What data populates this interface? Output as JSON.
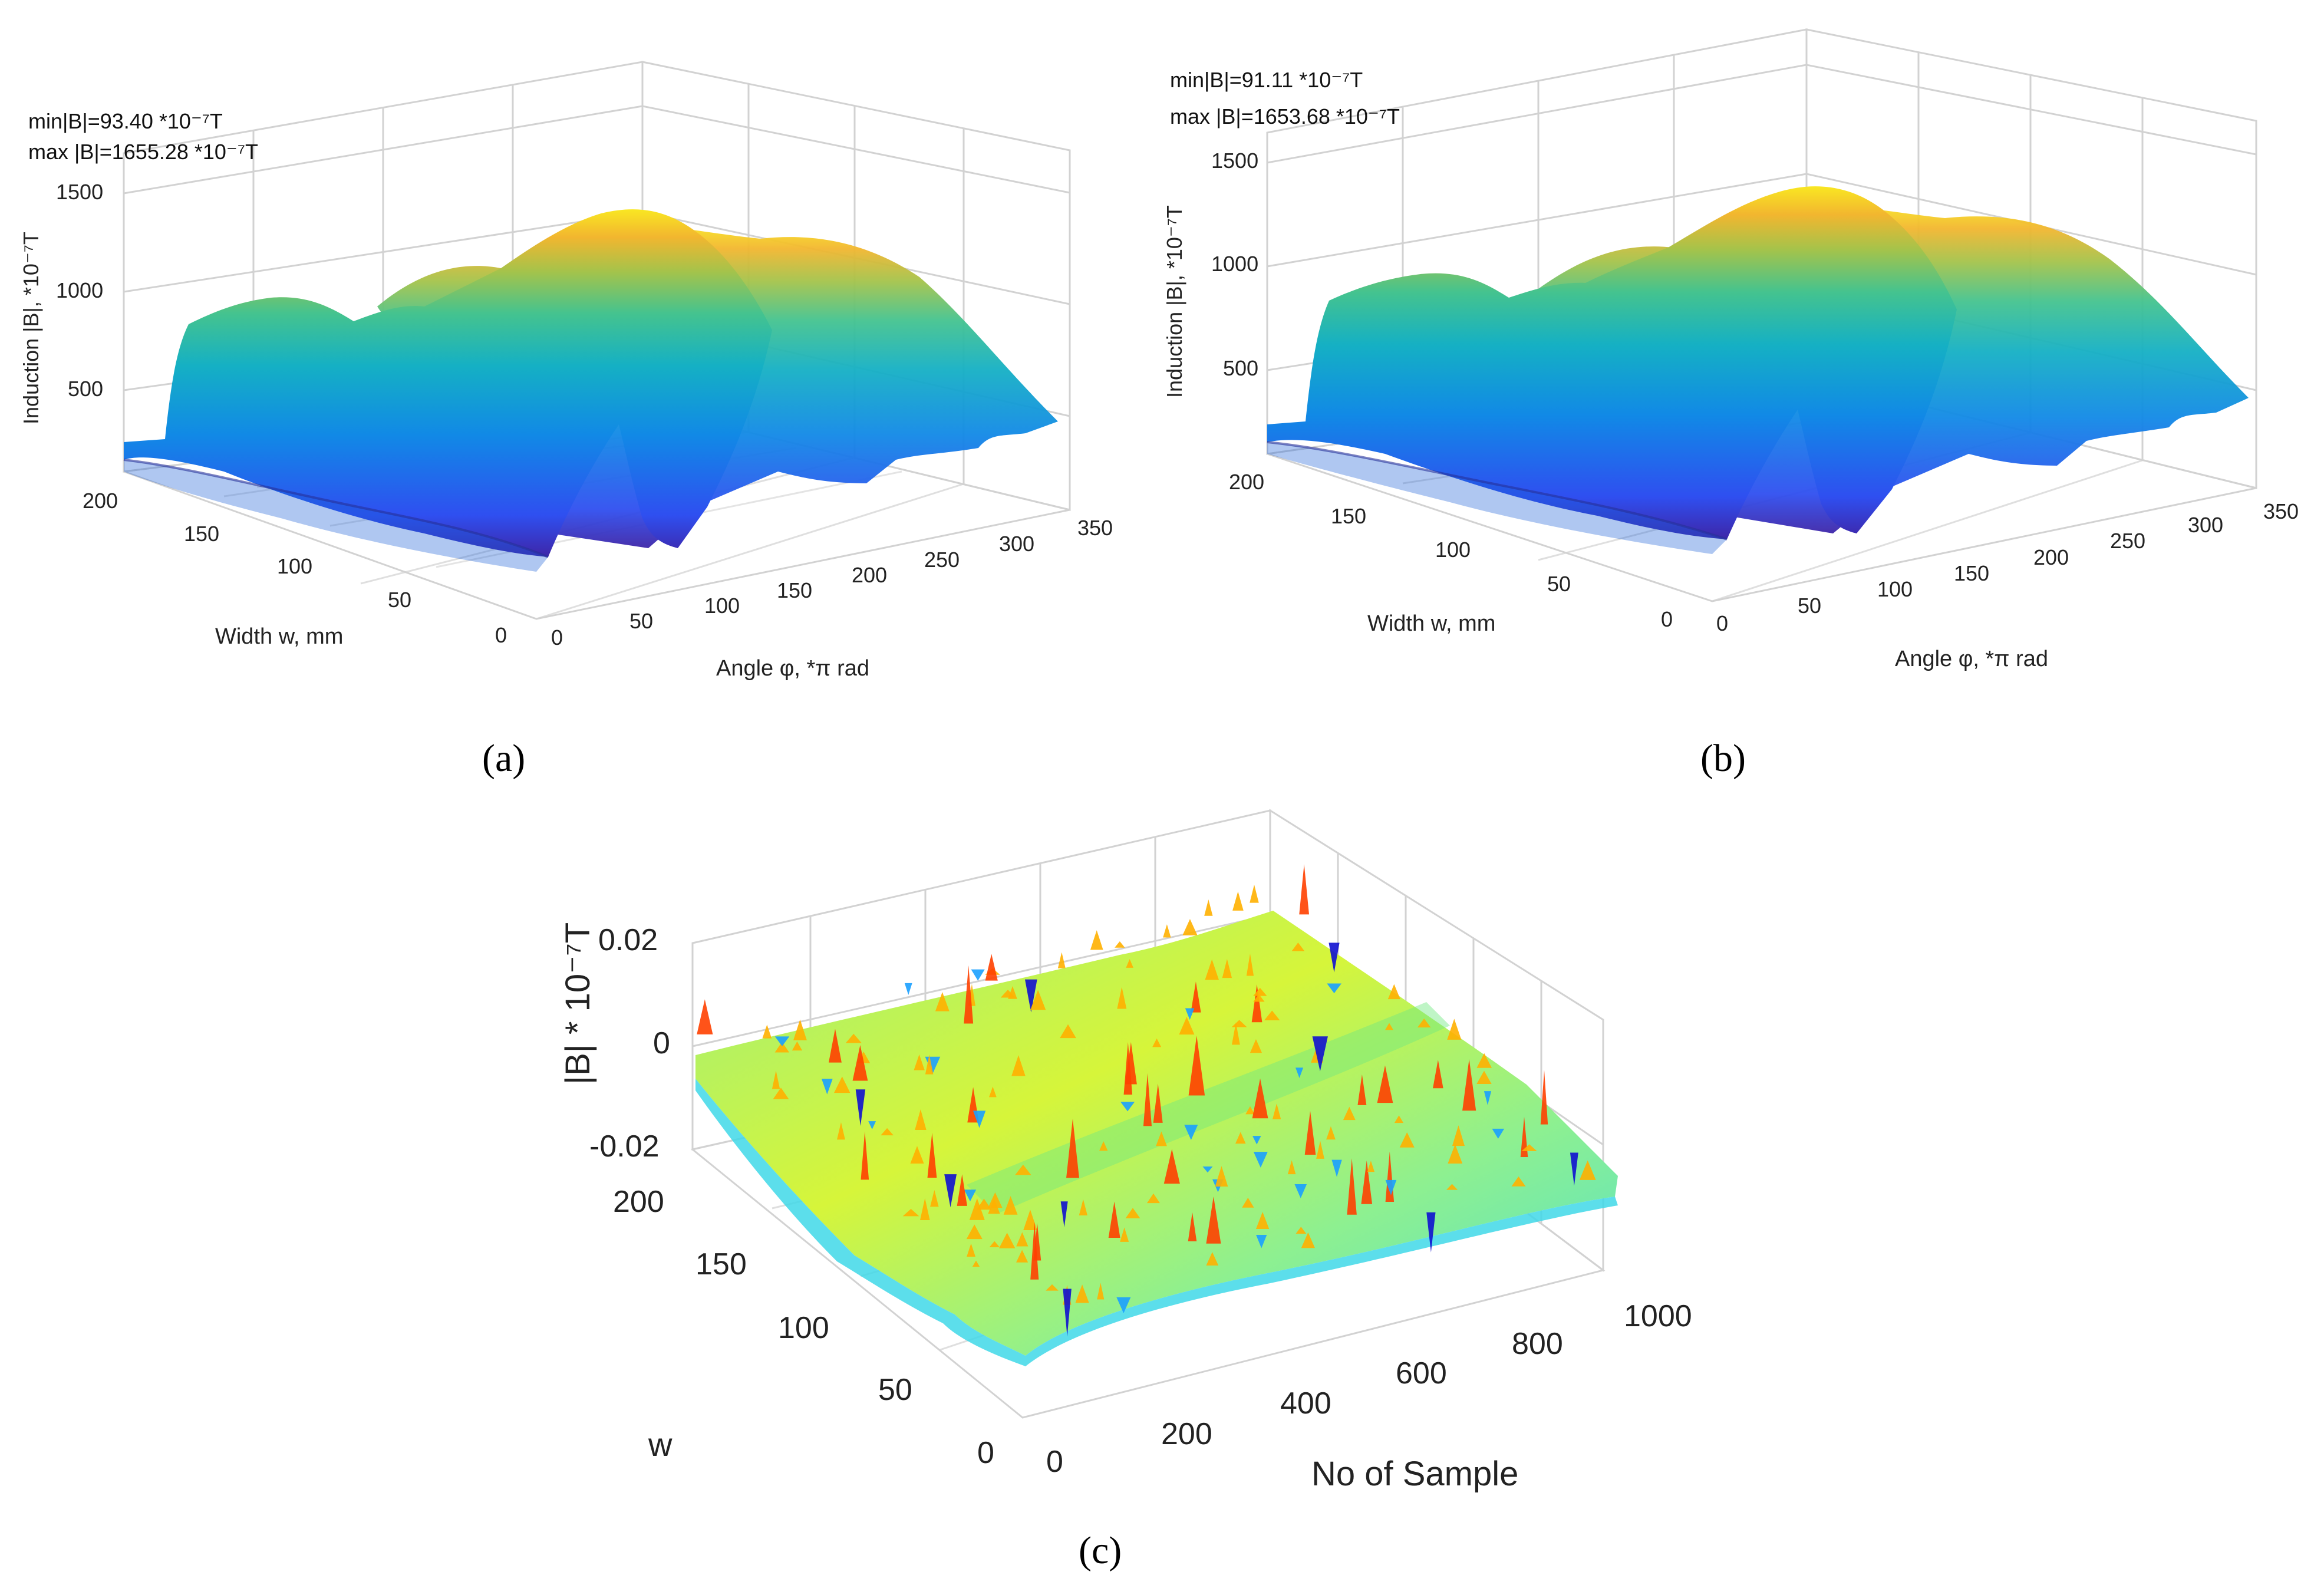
{
  "chart_data": [
    {
      "type": "surface",
      "panel_label": "(a)",
      "annotation_min": "min|B|=93.40 *10⁻⁷T",
      "annotation_max": "max |B|=1655.28 *10⁻⁷T",
      "xlabel": "Angle φ, *π rad",
      "ylabel": "Width w, mm",
      "zlabel": "Induction |B|, *10⁻⁷T",
      "x_ticks": [
        "0",
        "50",
        "100",
        "150",
        "200",
        "250",
        "300",
        "350"
      ],
      "y_ticks": [
        "0",
        "50",
        "100",
        "150",
        "200"
      ],
      "z_ticks": [
        "500",
        "1000",
        "1500"
      ],
      "xlim": [
        0,
        360
      ],
      "ylim": [
        0,
        200
      ],
      "zlim": [
        0,
        1700
      ],
      "min": 93.4,
      "max": 1655.28,
      "colormap": [
        "#3e26a8",
        "#2f4ff0",
        "#1189e6",
        "#15b0c4",
        "#44c38f",
        "#a4c34b",
        "#f2b62f",
        "#f9e722"
      ]
    },
    {
      "type": "surface",
      "panel_label": "(b)",
      "annotation_min": "min|B|=91.11 *10⁻⁷T",
      "annotation_max": "max |B|=1653.68 *10⁻⁷T",
      "xlabel": "Angle φ, *π rad",
      "ylabel": "Width w, mm",
      "zlabel": "Induction |B|, *10⁻⁷T",
      "x_ticks": [
        "0",
        "50",
        "100",
        "150",
        "200",
        "250",
        "300",
        "350"
      ],
      "y_ticks": [
        "0",
        "50",
        "100",
        "150",
        "200"
      ],
      "z_ticks": [
        "500",
        "1000",
        "1500"
      ],
      "xlim": [
        0,
        360
      ],
      "ylim": [
        0,
        200
      ],
      "zlim": [
        0,
        1700
      ],
      "min": 91.11,
      "max": 1653.68,
      "colormap": [
        "#3e26a8",
        "#2f4ff0",
        "#1189e6",
        "#15b0c4",
        "#44c38f",
        "#a4c34b",
        "#f2b62f",
        "#f9e722"
      ]
    },
    {
      "type": "surface",
      "panel_label": "(c)",
      "xlabel": "No of Sample",
      "ylabel": "w",
      "zlabel": "|B| * 10⁻⁷T",
      "x_ticks": [
        "0",
        "200",
        "400",
        "600",
        "800",
        "1000"
      ],
      "y_ticks": [
        "0",
        "50",
        "100",
        "150",
        "200"
      ],
      "z_ticks": [
        "-0.02",
        "0",
        "0.02"
      ],
      "xlim": [
        0,
        1000
      ],
      "ylim": [
        0,
        200
      ],
      "zlim": [
        -0.02,
        0.02
      ],
      "colormap": [
        "#1010d0",
        "#1aa0ff",
        "#20e0e0",
        "#70f070",
        "#e0f020",
        "#ffb000",
        "#ff4000"
      ]
    }
  ]
}
